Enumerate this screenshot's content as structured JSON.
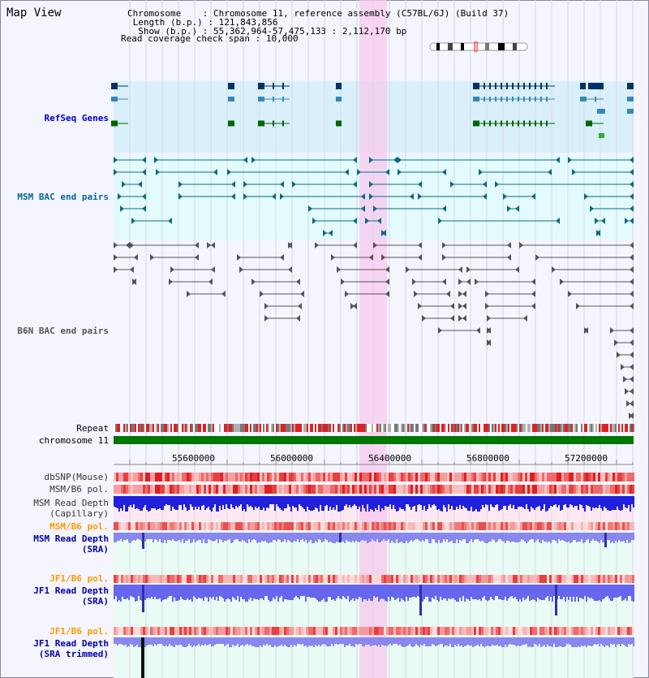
{
  "title": "Map View",
  "info": {
    "chromosome_label": "Chromosome",
    "chromosome_value": "Chromosome 11, reference assembly (C57BL/6J) (Build 37)",
    "length_label": "Length (b.p.)",
    "length_value": "121,843,856",
    "show_label": "Show (b.p.)",
    "show_value": "55,362,964-57,475,133 : 2,112,170 bp",
    "span_label": "Read coverage check span",
    "span_value": "10,000"
  },
  "tracks": {
    "refseq": "RefSeq Genes",
    "msm_bac": "MSM BAC end pairs",
    "b6n_bac": "B6N BAC end pairs",
    "repeat": "Repeat",
    "chromosome": "chromosome 11",
    "dbsnp": "dbSNP(Mouse)",
    "msm_b6_pol": "MSM/B6 pol.",
    "msm_read_cap_1": "MSM Read Depth",
    "msm_read_cap_2": "(Capillary)",
    "msm_b6_pol_sra": "MSM/B6 pol.",
    "msm_read_sra_1": "MSM Read Depth",
    "msm_read_sra_2": "(SRA)",
    "jf1_b6_pol": "JF1/B6 pol.",
    "jf1_read_sra_1": "JF1 Read Depth",
    "jf1_read_sra_2": "(SRA)",
    "jf1_b6_pol_trim": "JF1/B6 pol.",
    "jf1_read_trim_1": "JF1 Read Depth",
    "jf1_read_trim_2": "(SRA trimmed)"
  },
  "axis_ticks": [
    "55600000",
    "56000000",
    "56400000",
    "56800000",
    "57200000"
  ],
  "colors": {
    "refseq_label": "#0000cc",
    "msm_label": "#006699",
    "b6n_label": "#555555",
    "orange_label": "#ff9900",
    "blue_label": "#0000aa",
    "chromosome_bar": "#007700",
    "highlight": "#ffccee"
  }
}
